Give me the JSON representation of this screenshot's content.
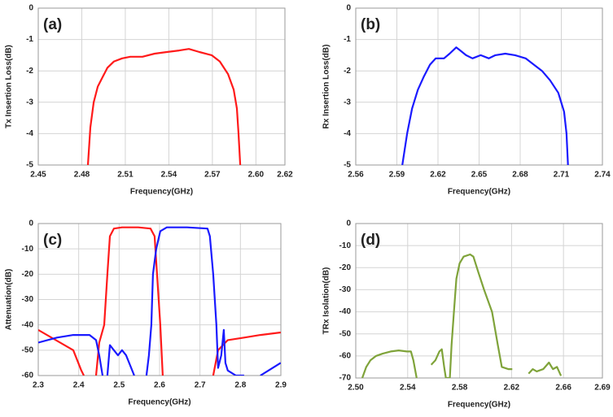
{
  "chart_data": [
    {
      "type": "line",
      "annotation": "(a)",
      "xlabel": "Frequency(GHz)",
      "ylabel": "Tx Insertion Loss(dB)",
      "grid": true,
      "xlim": [
        2.45,
        2.62
      ],
      "ylim": [
        -5,
        0
      ],
      "xticks": [
        2.45,
        2.48,
        2.51,
        2.54,
        2.57,
        {
          "value": 2.6,
          "label": "2.60"
        },
        2.62
      ],
      "yticks": [
        0,
        -1,
        -2,
        -3,
        -4,
        -5
      ],
      "series": [
        {
          "color": "#ff1a1a",
          "x": [
            2.4842,
            2.4859,
            2.4882,
            2.491,
            2.4943,
            2.4977,
            2.5022,
            2.5078,
            2.5134,
            2.5218,
            2.5302,
            2.5386,
            2.5471,
            2.5538,
            2.5611,
            2.5695,
            2.5751,
            2.5808,
            2.5847,
            2.5869,
            2.588,
            2.5892
          ],
          "values": [
            -5,
            -3.8,
            -3.0,
            -2.5,
            -2.2,
            -1.9,
            -1.7,
            -1.6,
            -1.55,
            -1.55,
            -1.45,
            -1.4,
            -1.35,
            -1.3,
            -1.4,
            -1.5,
            -1.7,
            -2.1,
            -2.6,
            -3.2,
            -4,
            -5
          ]
        }
      ]
    },
    {
      "type": "line",
      "annotation": "(b)",
      "xlabel": "Frequency(GHz)",
      "ylabel": "Rx Insertion Loss(dB)",
      "grid": true,
      "xlim": [
        2.56,
        2.74
      ],
      "ylim": [
        -5,
        0
      ],
      "xticks": [
        2.56,
        2.59,
        2.62,
        2.65,
        2.68,
        2.71,
        2.74
      ],
      "yticks": [
        0,
        -1,
        -2,
        -3,
        -4,
        -5
      ],
      "series": [
        {
          "color": "#1a1aff",
          "x": [
            2.594,
            2.5975,
            2.6011,
            2.6053,
            2.6095,
            2.6142,
            2.6184,
            2.6244,
            2.6285,
            2.6333,
            2.6363,
            2.6405,
            2.6452,
            2.6512,
            2.6571,
            2.6619,
            2.6691,
            2.6762,
            2.684,
            2.6899,
            2.6959,
            2.7018,
            2.7078,
            2.712,
            2.7138,
            2.7149
          ],
          "values": [
            -5,
            -4,
            -3.2,
            -2.6,
            -2.2,
            -1.8,
            -1.6,
            -1.6,
            -1.45,
            -1.25,
            -1.35,
            -1.5,
            -1.6,
            -1.5,
            -1.6,
            -1.5,
            -1.45,
            -1.5,
            -1.6,
            -1.8,
            -2.0,
            -2.3,
            -2.7,
            -3.3,
            -4,
            -5
          ]
        }
      ]
    },
    {
      "type": "line",
      "annotation": "(c)",
      "xlabel": "Frequency(GHz)",
      "ylabel": "Attenuation(dB)",
      "grid": true,
      "xlim": [
        2.3,
        2.9
      ],
      "ylim": [
        -60,
        0
      ],
      "xticks": [
        2.3,
        2.4,
        2.5,
        2.6,
        2.7,
        2.8,
        2.9
      ],
      "yticks": [
        0,
        -10,
        -20,
        -30,
        -40,
        -50,
        -60
      ],
      "series": [
        {
          "color": "#ff1a1a",
          "x": [
            2.3,
            2.3865,
            2.4066,
            2.4127,
            2.42,
            2.4429,
            2.4509,
            2.463,
            2.471,
            2.4771,
            2.4871,
            2.5072,
            2.5475,
            2.5777,
            2.5877,
            2.5938,
            2.6018,
            2.6078,
            2.67,
            2.7326,
            2.7447,
            2.7688,
            2.8091,
            2.8493,
            2.8996
          ],
          "values": [
            -42,
            -50,
            -58,
            -60,
            null,
            -60,
            -47,
            -40,
            -20,
            -5,
            -2,
            -1.5,
            -1.5,
            -2,
            -5,
            -20,
            -40,
            -60,
            null,
            -60,
            -50,
            -46,
            -45,
            -44,
            -43
          ]
        },
        {
          "color": "#1a1aff",
          "x": [
            2.3,
            2.3463,
            2.3865,
            2.4268,
            2.4429,
            2.4509,
            2.459,
            2.465,
            2.471,
            2.4771,
            2.4871,
            2.4972,
            2.5072,
            2.5173,
            2.5274,
            2.5374,
            2.55,
            2.5676,
            2.5736,
            2.5797,
            2.5837,
            2.5918,
            2.6018,
            2.6179,
            2.6682,
            2.7185,
            2.7245,
            2.7326,
            2.7406,
            2.7447,
            2.7527,
            2.7588,
            2.7628,
            2.7688,
            2.7889,
            2.8091,
            2.83,
            2.8493,
            2.8694,
            2.8996
          ],
          "values": [
            -47,
            -45,
            -44,
            -44,
            -46,
            -52,
            -60,
            null,
            -60,
            -48,
            -50,
            -52,
            -50,
            -52,
            -56,
            -60,
            null,
            -60,
            -52,
            -40,
            -20,
            -10,
            -3,
            -1.5,
            -1.5,
            -2,
            -5,
            -20,
            -40,
            -57,
            -52,
            -42,
            -55,
            -58,
            -60,
            -60,
            null,
            -60,
            -58,
            -55
          ]
        }
      ]
    },
    {
      "type": "line",
      "annotation": "(d)",
      "xlabel": "Frequency(GHz)",
      "ylabel": "TRx Isolation(dB)",
      "grid": true,
      "xlim": [
        2.5,
        2.69
      ],
      "ylim": [
        -70,
        0
      ],
      "xticks": [
        {
          "value": 2.5,
          "label": "2.50"
        },
        2.54,
        2.58,
        2.62,
        2.66,
        2.69
      ],
      "yticks": [
        0,
        -10,
        -20,
        -30,
        -40,
        -50,
        -60,
        -70
      ],
      "series": [
        {
          "color": "#7fa33a",
          "x": [
            2.505,
            2.5081,
            2.5113,
            2.5156,
            2.5206,
            2.5269,
            2.5331,
            2.5394,
            2.5425,
            2.5444,
            2.5469,
            2.552,
            2.5581,
            2.5613,
            2.5644,
            2.5663,
            2.5681,
            2.5694,
            2.5725,
            2.5738,
            2.5756,
            2.5775,
            2.58,
            2.5831,
            2.5881,
            2.5906,
            2.5944,
            2.5988,
            2.605,
            2.6094,
            2.6125,
            2.6175,
            2.6206,
            2.63,
            2.6331,
            2.6363,
            2.6394,
            2.6444,
            2.6488,
            2.6519,
            2.655,
            2.6581
          ],
          "values": [
            -70,
            -65,
            -62,
            -60,
            -59,
            -58,
            -57.5,
            -58,
            -58,
            -62,
            -70,
            null,
            -64,
            -62,
            -58,
            -57,
            -65,
            -70,
            -70,
            -55,
            -40,
            -25,
            -18,
            -15,
            -14,
            -15,
            -22,
            -30,
            -40,
            -55,
            -65,
            -66,
            -66,
            null,
            -68,
            -66,
            -67,
            -66,
            -63,
            -66,
            -65,
            -69
          ]
        }
      ]
    }
  ]
}
